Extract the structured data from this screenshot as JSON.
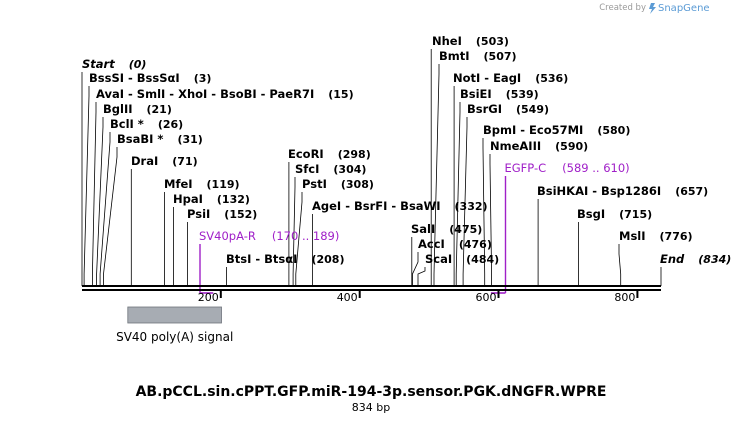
{
  "branding": {
    "created_by": "Created by",
    "app_name": "SnapGene",
    "logo_color": "#5b9bd5"
  },
  "map": {
    "title": "AB.pCCL.sin.cPPT.GFP.miR-194-3p.sensor.PGK.dNGFR.WPRE",
    "length_label": "834 bp",
    "total_bp": 834,
    "ticks": [
      {
        "bp": 200,
        "label": "200"
      },
      {
        "bp": 400,
        "label": "400"
      },
      {
        "bp": 600,
        "label": "600"
      },
      {
        "bp": 800,
        "label": "800"
      }
    ],
    "sites": [
      {
        "text": "Start",
        "pos": "(0)",
        "bp": 0,
        "italic": true
      },
      {
        "text": "BssSI  -  BssSαI",
        "pos": "(3)",
        "bp": 3
      },
      {
        "text": "AvaI  -  SmlI  -  XhoI  -  BsoBI  -  PaeR7I",
        "pos": "(15)",
        "bp": 15
      },
      {
        "text": "BglII",
        "pos": "(21)",
        "bp": 21
      },
      {
        "text": "BclI *",
        "pos": "(26)",
        "bp": 26
      },
      {
        "text": "BsaBI *",
        "pos": "(31)",
        "bp": 31
      },
      {
        "text": "DraI",
        "pos": "(71)",
        "bp": 71
      },
      {
        "text": "MfeI",
        "pos": "(119)",
        "bp": 119
      },
      {
        "text": "HpaI",
        "pos": "(132)",
        "bp": 132
      },
      {
        "text": "PsiI",
        "pos": "(152)",
        "bp": 152
      },
      {
        "text": "BtsI  -  BtsαI",
        "pos": "(208)",
        "bp": 208
      },
      {
        "text": "EcoRI",
        "pos": "(298)",
        "bp": 298
      },
      {
        "text": "SfcI",
        "pos": "(304)",
        "bp": 304
      },
      {
        "text": "PstI",
        "pos": "(308)",
        "bp": 308
      },
      {
        "text": "AgeI  -  BsrFI  -  BsaWI",
        "pos": "(332)",
        "bp": 332
      },
      {
        "text": "SalI",
        "pos": "(475)",
        "bp": 475
      },
      {
        "text": "AccI",
        "pos": "(476)",
        "bp": 476
      },
      {
        "text": "ScaI",
        "pos": "(484)",
        "bp": 484
      },
      {
        "text": "NheI",
        "pos": "(503)",
        "bp": 503
      },
      {
        "text": "BmtI",
        "pos": "(507)",
        "bp": 507
      },
      {
        "text": "NotI  -  EagI",
        "pos": "(536)",
        "bp": 536
      },
      {
        "text": "BsiEI",
        "pos": "(539)",
        "bp": 539
      },
      {
        "text": "BsrGI",
        "pos": "(549)",
        "bp": 549
      },
      {
        "text": "BpmI  -  Eco57MI",
        "pos": "(580)",
        "bp": 580
      },
      {
        "text": "NmeAIII",
        "pos": "(590)",
        "bp": 590
      },
      {
        "text": "BsiHKAI  -  Bsp1286I",
        "pos": "(657)",
        "bp": 657
      },
      {
        "text": "BsgI",
        "pos": "(715)",
        "bp": 715
      },
      {
        "text": "MslI",
        "pos": "(776)",
        "bp": 776
      },
      {
        "text": "End",
        "pos": "(834)",
        "bp": 834,
        "italic": true
      }
    ],
    "primers": [
      {
        "name": "SV40pA-R",
        "range": "(170 .. 189)",
        "start": 170,
        "end": 189,
        "color": "#a020c8"
      },
      {
        "name": "EGFP-C",
        "range": "(589 .. 610)",
        "start": 589,
        "end": 610,
        "color": "#a020c8"
      }
    ],
    "features": [
      {
        "name": "SV40 poly(A) signal",
        "start": 66,
        "end": 201,
        "color": "#a7acb3"
      }
    ]
  }
}
